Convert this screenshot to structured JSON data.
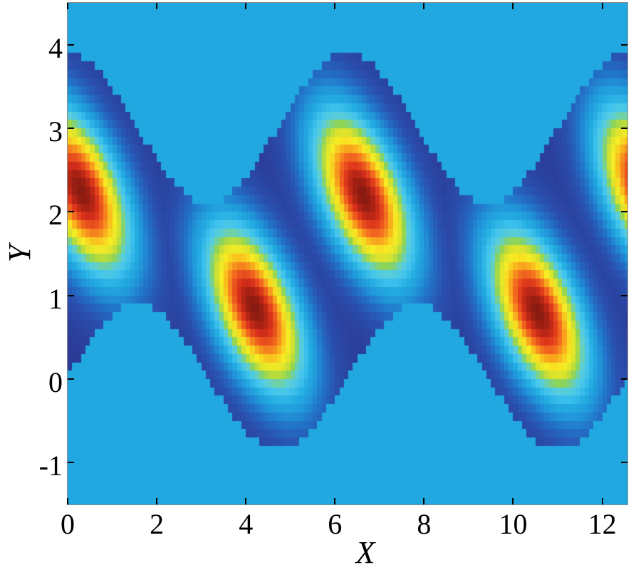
{
  "figure": {
    "background": "#ffffff",
    "xlabel": "X",
    "ylabel": "Y",
    "x_tick_labels": [
      "0",
      "2",
      "4",
      "6",
      "8",
      "10",
      "12"
    ],
    "y_tick_labels": [
      "-1",
      "0",
      "1",
      "2",
      "3",
      "4"
    ]
  },
  "chart_data": {
    "type": "heatmap",
    "title": "",
    "xlabel": "X",
    "ylabel": "Y",
    "x_range": [
      0,
      12.566
    ],
    "y_range": [
      -1.5,
      4.5
    ],
    "x_ticks": [
      0,
      2,
      4,
      6,
      8,
      10,
      12
    ],
    "y_ticks": [
      -1,
      0,
      1,
      2,
      3,
      4
    ],
    "grid_cell_size": 0.1,
    "grid_on": false,
    "legend": "none",
    "description": "Cyan background with a sinusoidal dark-blue band containing five hot elliptical Gaussian peaks (jet colormap).",
    "background_level": 0.36,
    "band": {
      "top_boundary": "y = top_mean + top_amp*cos(x)",
      "top_mean": 3.0,
      "top_amp": 0.9,
      "bottom_boundary": "y = bottom_mean + bottom_amp*sin(x)",
      "bottom_mean": 0.03,
      "bottom_amp": 0.87
    },
    "hotspots": [
      {
        "x": 0.3,
        "y": 2.25,
        "peak": 1.0
      },
      {
        "x": 4.2,
        "y": 0.85,
        "peak": 1.0
      },
      {
        "x": 6.63,
        "y": 2.2,
        "peak": 1.0
      },
      {
        "x": 10.55,
        "y": 0.8,
        "peak": 1.0
      },
      {
        "x": 13.0,
        "y": 2.25,
        "peak": 1.0
      }
    ],
    "hotspot_shape": {
      "sigma_major": 1.5,
      "sigma_minor": 0.82,
      "major_axis_angle_deg": 140
    },
    "colormap_name": "jet",
    "colormap_stops": [
      [
        0.0,
        "#2b3a95"
      ],
      [
        0.12,
        "#2a4fae"
      ],
      [
        0.22,
        "#2273c8"
      ],
      [
        0.3,
        "#2197d9"
      ],
      [
        0.37,
        "#22abe1"
      ],
      [
        0.45,
        "#41c4ee"
      ],
      [
        0.52,
        "#5ecfd5"
      ],
      [
        0.58,
        "#8ed454"
      ],
      [
        0.64,
        "#d8e22d"
      ],
      [
        0.71,
        "#f8ed24"
      ],
      [
        0.78,
        "#f9b31d"
      ],
      [
        0.85,
        "#f3691f"
      ],
      [
        0.92,
        "#da301b"
      ],
      [
        1.0,
        "#871a10"
      ]
    ],
    "tick_color": "#000000",
    "label_color": "#000000"
  }
}
